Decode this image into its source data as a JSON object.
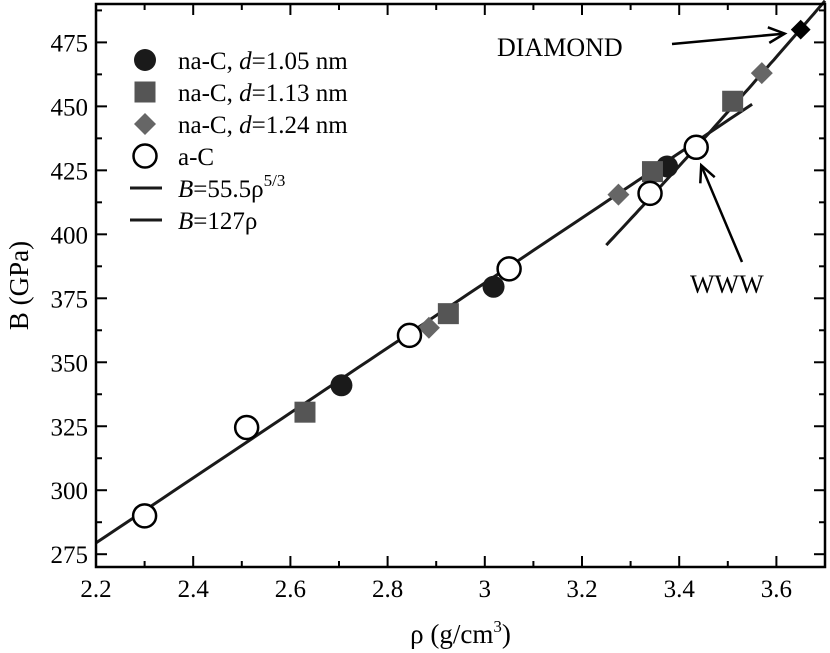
{
  "chart_data": {
    "type": "scatter",
    "xlabel": {
      "main": "ρ (g/cm",
      "sup": "3",
      "close": ")"
    },
    "ylabel": "B (GPa)",
    "xlim": [
      2.2,
      3.7
    ],
    "ylim": [
      270,
      490
    ],
    "xticks": [
      2.2,
      2.4,
      2.6,
      2.8,
      3.0,
      3.2,
      3.4,
      3.6
    ],
    "xtick_labels": [
      "2.2",
      "2.4",
      "2.6",
      "2.8",
      "3",
      "3.2",
      "3.4",
      "3.6"
    ],
    "yticks": [
      275,
      300,
      325,
      350,
      375,
      400,
      425,
      450,
      475
    ],
    "ytick_labels": [
      "275",
      "300",
      "325",
      "350",
      "375",
      "400",
      "425",
      "450",
      "475"
    ],
    "grid": false,
    "legend_position": "top-left",
    "series": [
      {
        "name": {
          "pre": "na-C, ",
          "ital": "d",
          "post": "=1.05 nm"
        },
        "marker": "circle-filled",
        "color": "#1a1a1a",
        "points": [
          [
            2.705,
            341.0
          ],
          [
            3.018,
            379.5
          ],
          [
            3.375,
            426.5
          ]
        ]
      },
      {
        "name": {
          "pre": "na-C, ",
          "ital": "d",
          "post": "=1.13 nm"
        },
        "marker": "square",
        "color": "#555555",
        "points": [
          [
            2.63,
            330.5
          ],
          [
            2.925,
            369.0
          ],
          [
            3.345,
            424.5
          ],
          [
            3.51,
            452.0
          ]
        ]
      },
      {
        "name": {
          "pre": "na-C, ",
          "ital": "d",
          "post": "=1.24 nm"
        },
        "marker": "diamond",
        "color": "#666666",
        "points": [
          [
            2.885,
            363.5
          ],
          [
            3.275,
            415.5
          ],
          [
            3.57,
            463.0
          ]
        ]
      },
      {
        "name": {
          "pre": "a-C",
          "ital": "",
          "post": ""
        },
        "marker": "circle-open",
        "color": "#000000",
        "points": [
          [
            2.3,
            290.0
          ],
          [
            2.51,
            324.5
          ],
          [
            2.845,
            360.5
          ],
          [
            3.05,
            386.5
          ],
          [
            3.34,
            416.0
          ],
          [
            3.435,
            434.0
          ]
        ]
      }
    ],
    "fits": [
      {
        "legend": {
          "ital": "B",
          "post": "=55.5ρ",
          "sup": "5/3"
        },
        "coef": 55.5,
        "exponent": 1.6667,
        "x_range": [
          3.25,
          3.7
        ]
      },
      {
        "legend": {
          "ital": "B",
          "post": "=127ρ",
          "sup": ""
        },
        "coef": 127,
        "exponent": 1.0,
        "x_range": [
          2.2,
          3.55
        ]
      }
    ],
    "special_points": [
      {
        "label": "DIAMOND",
        "x": 3.65,
        "y": 480.0,
        "marker": "diamond",
        "color": "#000000"
      }
    ],
    "annotations": [
      {
        "text": "DIAMOND",
        "target": [
          3.65,
          480.0
        ]
      },
      {
        "text": "WWW",
        "target": [
          3.435,
          434.0
        ]
      }
    ]
  }
}
